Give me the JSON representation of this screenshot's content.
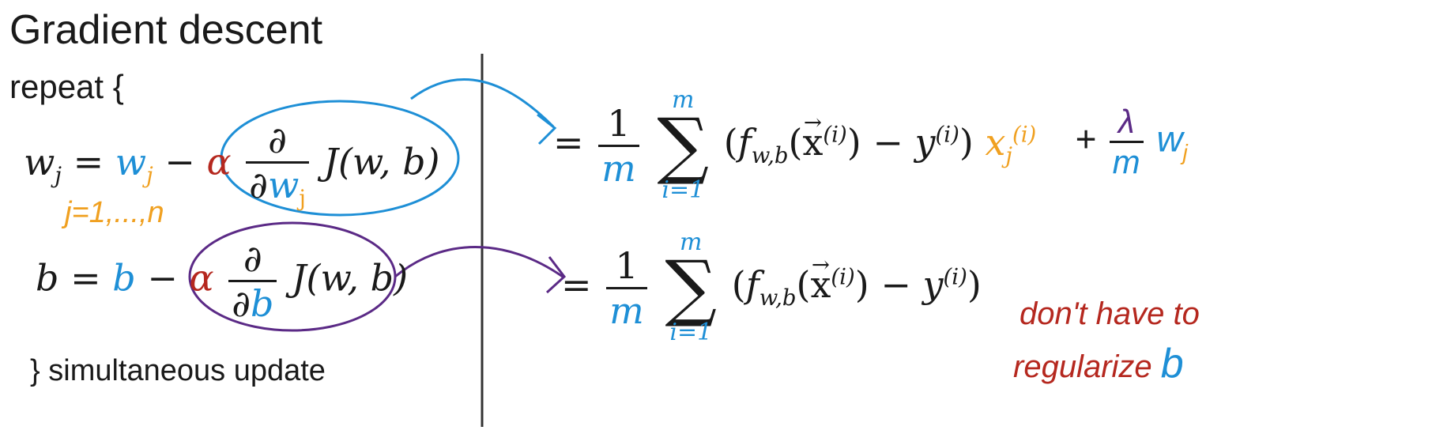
{
  "title": "Gradient descent",
  "repeat_label": "repeat {",
  "simultaneous_label": "} simultaneous update",
  "w_update": {
    "lhs": "w",
    "lhs_sub": "j",
    "equals": "=",
    "w_term": "w",
    "w_term_sub": "j",
    "minus": "−",
    "alpha": "α",
    "partial_num": "∂",
    "partial_den_prefix": "∂",
    "partial_den_var": "w",
    "partial_den_sub": "j",
    "cost": "J(w, b)"
  },
  "index_note": "j=1,...,n",
  "b_update": {
    "lhs": "b",
    "equals": "=",
    "b_term": "b",
    "minus": "−",
    "alpha": "α",
    "partial_num": "∂",
    "partial_den_prefix": "∂",
    "partial_den_var": "b",
    "cost": "J(w, b)"
  },
  "w_derivative": {
    "equals": "=",
    "frac_num": "1",
    "frac_den": "m",
    "sum_top": "m",
    "sum_bottom": "i=1",
    "f": "f",
    "f_sub": "w,b",
    "x_sup": "(i)",
    "y_sup": "(i)",
    "x_j": "x",
    "x_j_sub": "j",
    "x_j_sup": "(i)",
    "plus": "+",
    "lambda": "λ",
    "lambda_den": "m",
    "w_reg": "w",
    "w_reg_sub": "j"
  },
  "b_derivative": {
    "equals": "=",
    "frac_num": "1",
    "frac_den": "m",
    "sum_top": "m",
    "sum_bottom": "i=1",
    "f": "f",
    "f_sub": "w,b",
    "x_sup": "(i)",
    "y_sup": "(i)"
  },
  "note": {
    "line1": "don't have to",
    "line2": "regularize",
    "line2_b": "b"
  },
  "colors": {
    "blue": "#1e8fd6",
    "red": "#b5281f",
    "orange": "#f0a020",
    "purple": "#5b2a86",
    "text": "#1a1a1a"
  }
}
